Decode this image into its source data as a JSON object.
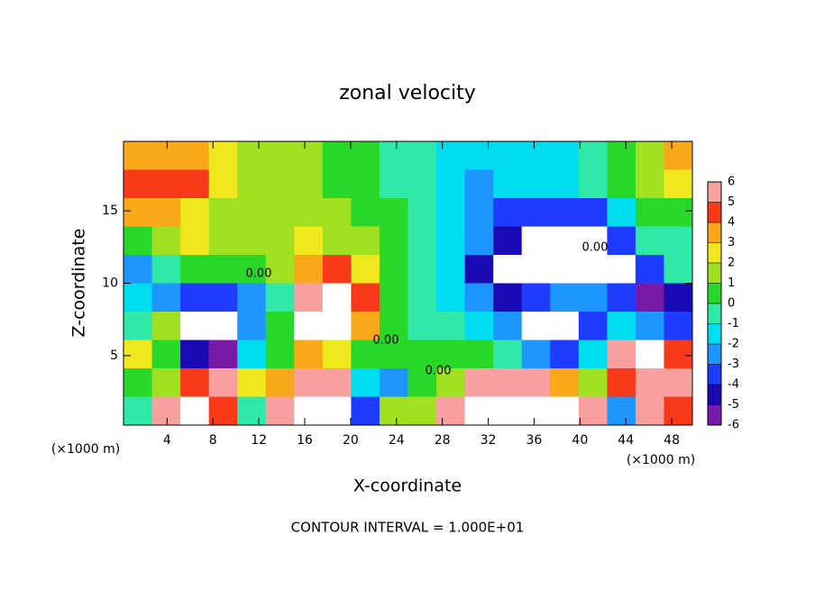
{
  "chart_data": {
    "type": "contour",
    "title": "zonal velocity",
    "xlabel": "X-coordinate",
    "ylabel": "Z-coordinate",
    "xunit": "(×1000 m)",
    "yunit": "(×1000 m)",
    "footer": "CONTOUR INTERVAL = 1.000E+01",
    "contour_labels": [
      "0.00",
      "0.00",
      "0.00",
      "0.00"
    ],
    "xlim": [
      0.2,
      49.8
    ],
    "ylim": [
      0.2,
      19.8
    ],
    "xticks": [
      4,
      8,
      12,
      16,
      20,
      24,
      28,
      32,
      36,
      40,
      44,
      48
    ],
    "yticks": [
      5,
      10,
      15
    ],
    "colorbar_ticks": [
      -6,
      -5,
      -4,
      -3,
      -2,
      -1,
      0,
      1,
      2,
      3,
      4,
      5,
      6
    ],
    "colors": [
      "#7a1aa8",
      "#1a0ab4",
      "#1e3cff",
      "#1e96ff",
      "#00dcf0",
      "#30e8a8",
      "#28d828",
      "#a0e020",
      "#f0e81c",
      "#f8a818",
      "#f83a1a",
      "#f8a0a0"
    ],
    "z": [
      [
        3.5,
        3.5,
        3,
        2,
        1.5,
        1,
        1,
        0.5,
        0.5,
        -0.5,
        -1,
        -1.5,
        -2,
        -2,
        -2,
        -1.5,
        -1,
        0,
        1,
        3
      ],
      [
        4,
        4.5,
        4,
        2,
        1.5,
        1,
        1,
        0.5,
        0.5,
        -0.5,
        -1,
        -2,
        -2.5,
        -2,
        -2,
        -1.5,
        -1,
        0,
        1,
        2.5
      ],
      [
        3,
        3,
        2.5,
        1.5,
        1.5,
        1,
        1.5,
        1,
        0.5,
        0,
        -1,
        -2,
        -3,
        -3.5,
        -4,
        -4,
        -3.5,
        -1.5,
        0,
        0.5
      ],
      [
        0.5,
        1.5,
        2,
        1.5,
        1.5,
        1.5,
        2,
        1.5,
        1,
        0.5,
        -1,
        -2,
        -3,
        -5,
        -7,
        -7,
        -7,
        -4,
        -1,
        -0.5
      ],
      [
        -3,
        -1,
        0,
        0.5,
        0.5,
        1,
        3,
        4,
        2,
        0.5,
        -1,
        -2,
        -5,
        -7,
        -7,
        -7,
        -7,
        -7,
        -4,
        -1
      ],
      [
        -2,
        -3,
        -4,
        -4,
        -3,
        -1,
        5,
        6.5,
        4,
        0.5,
        -1,
        -2,
        -3,
        -5,
        -4,
        -3,
        -3,
        -4,
        -6,
        -5
      ],
      [
        -1,
        1,
        -7,
        -7,
        -3,
        0.5,
        7,
        7,
        3,
        0.5,
        -1,
        -1,
        -2,
        -3,
        -7,
        -7,
        -4,
        -2,
        -3,
        -4
      ],
      [
        2,
        0,
        -5,
        -6,
        -2,
        0.5,
        3,
        2,
        0,
        0,
        0,
        0,
        0,
        -1,
        -3,
        -4,
        -2,
        5,
        7,
        4
      ],
      [
        0,
        1,
        4,
        6,
        2,
        3,
        5,
        6,
        -2,
        -3,
        0,
        1,
        5,
        6,
        5,
        3,
        1,
        4,
        6,
        5
      ],
      [
        -1,
        5,
        7,
        4,
        -1,
        6,
        7,
        7,
        -4,
        1,
        1,
        5,
        7,
        7,
        7,
        7,
        6,
        -3,
        5,
        4
      ]
    ]
  }
}
